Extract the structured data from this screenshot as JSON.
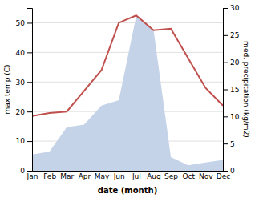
{
  "chart_data": {
    "type": "line",
    "categories": [
      "Jan",
      "Feb",
      "Mar",
      "Apr",
      "May",
      "Jun",
      "Jul",
      "Aug",
      "Sep",
      "Oct",
      "Nov",
      "Dec"
    ],
    "series": [
      {
        "type": "area",
        "axis": "y2",
        "color": "#c5d3e8",
        "values": [
          3.0,
          3.5,
          8.0,
          8.5,
          12.0,
          13.0,
          28.5,
          26.0,
          2.5,
          1.0,
          1.5,
          2.0
        ]
      },
      {
        "type": "line",
        "color": "#c0504d",
        "values": [
          18.5,
          19.5,
          20.0,
          27.0,
          34.0,
          50.0,
          52.5,
          47.5,
          48.0,
          38.0,
          28.0,
          22.0
        ]
      }
    ],
    "xlabel": "date (month)",
    "ylabel": "max temp (C)",
    "y2label": "med. precipitation (kg/m2)",
    "ylim": [
      0,
      55
    ],
    "yticks": [
      0,
      10,
      20,
      30,
      40,
      50
    ],
    "y2lim": [
      0,
      30
    ],
    "y2ticks": [
      0,
      5,
      10,
      15,
      20,
      25,
      30
    ],
    "grid": true
  }
}
